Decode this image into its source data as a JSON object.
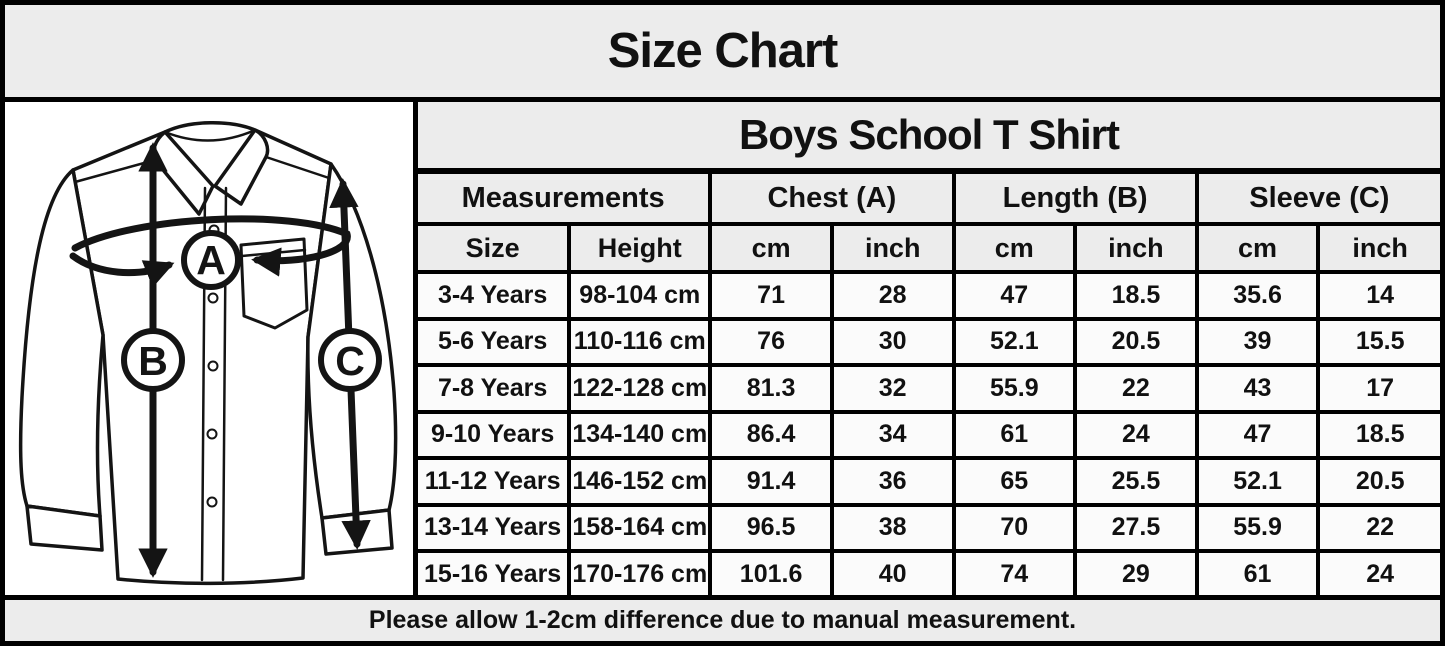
{
  "page_title": "Size Chart",
  "chart_data": {
    "type": "table",
    "title": "Boys School T Shirt",
    "group_headers": [
      {
        "label": "Measurements",
        "span": 2
      },
      {
        "label": "Chest (A)",
        "span": 2
      },
      {
        "label": "Length (B)",
        "span": 2
      },
      {
        "label": "Sleeve (C)",
        "span": 2
      }
    ],
    "columns": [
      "Size",
      "Height",
      "cm",
      "inch",
      "cm",
      "inch",
      "cm",
      "inch"
    ],
    "rows": [
      [
        "3-4 Years",
        "98-104 cm",
        "71",
        "28",
        "47",
        "18.5",
        "35.6",
        "14"
      ],
      [
        "5-6 Years",
        "110-116 cm",
        "76",
        "30",
        "52.1",
        "20.5",
        "39",
        "15.5"
      ],
      [
        "7-8 Years",
        "122-128 cm",
        "81.3",
        "32",
        "55.9",
        "22",
        "43",
        "17"
      ],
      [
        "9-10 Years",
        "134-140 cm",
        "86.4",
        "34",
        "61",
        "24",
        "47",
        "18.5"
      ],
      [
        "11-12 Years",
        "146-152 cm",
        "91.4",
        "36",
        "65",
        "25.5",
        "52.1",
        "20.5"
      ],
      [
        "13-14 Years",
        "158-164 cm",
        "96.5",
        "38",
        "70",
        "27.5",
        "55.9",
        "22"
      ],
      [
        "15-16 Years",
        "170-176 cm",
        "101.6",
        "40",
        "74",
        "29",
        "61",
        "24"
      ]
    ]
  },
  "diagram": {
    "type": "shirt-measurement-diagram",
    "labels": [
      "A",
      "B",
      "C"
    ]
  },
  "footer_note": "Please allow 1-2cm difference due to manual measurement.",
  "colors": {
    "border": "#000000",
    "header_bg": "#ececec",
    "row_bg": "#fbfbfb",
    "panel_bg": "#ffffff",
    "text": "#111111"
  }
}
